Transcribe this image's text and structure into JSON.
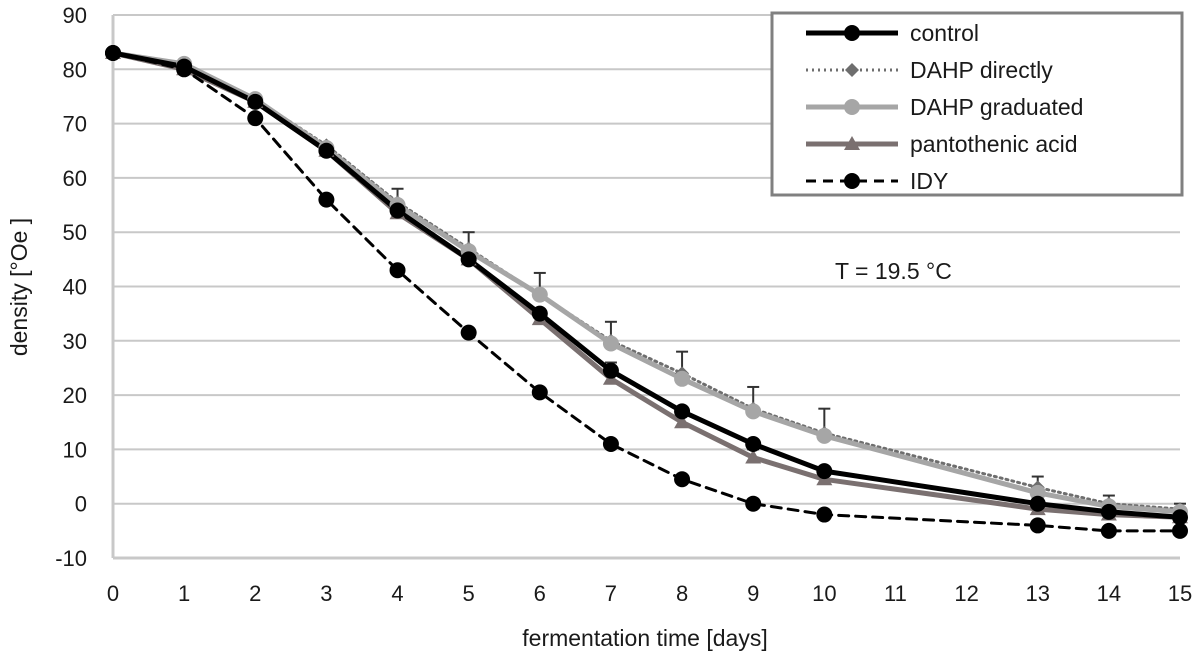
{
  "chart_data": {
    "type": "line",
    "xlabel": "fermentation time [days]",
    "ylabel": "density [°Oe ]",
    "annotation": "T = 19.5 °C",
    "ylim": [
      -10,
      90
    ],
    "yticks": [
      -10,
      0,
      10,
      20,
      30,
      40,
      50,
      60,
      70,
      80,
      90
    ],
    "categories": [
      "0",
      "1",
      "2",
      "3",
      "4",
      "5",
      "6",
      "7",
      "8",
      "9",
      "10",
      "11",
      "12",
      "13",
      "14",
      "15"
    ],
    "grid": "horizontal",
    "legend_position": "top-right",
    "series": [
      {
        "name": "control",
        "color": "#000000",
        "marker": "circle",
        "dash": "solid",
        "points": [
          [
            0,
            83
          ],
          [
            1,
            80.5
          ],
          [
            2,
            74
          ],
          [
            3,
            65
          ],
          [
            4,
            54
          ],
          [
            5,
            45
          ],
          [
            6,
            35
          ],
          [
            7,
            24.5
          ],
          [
            8,
            17
          ],
          [
            9,
            11
          ],
          [
            10,
            6
          ],
          [
            13,
            0
          ],
          [
            14,
            -1.5
          ],
          [
            15,
            -2.5
          ]
        ]
      },
      {
        "name": "DAHP directly",
        "color": "#6e6e6e",
        "marker": "diamond",
        "dash": "dotted",
        "points": [
          [
            0,
            83
          ],
          [
            1,
            81
          ],
          [
            2,
            74.5
          ],
          [
            3,
            66
          ],
          [
            4,
            55.5
          ],
          [
            5,
            47
          ],
          [
            6,
            38.5
          ],
          [
            7,
            30
          ],
          [
            8,
            24
          ],
          [
            9,
            17.5
          ],
          [
            10,
            13
          ],
          [
            13,
            3
          ],
          [
            14,
            0
          ],
          [
            15,
            -1
          ]
        ],
        "error": [
          0,
          0,
          0,
          0,
          2.5,
          3,
          4,
          3.5,
          4,
          4,
          4.5,
          2,
          1.5,
          1
        ]
      },
      {
        "name": "DAHP graduated",
        "color": "#a6a6a6",
        "marker": "circle",
        "dash": "solid",
        "points": [
          [
            0,
            83
          ],
          [
            1,
            81
          ],
          [
            2,
            74.5
          ],
          [
            3,
            65.5
          ],
          [
            4,
            55
          ],
          [
            5,
            46.5
          ],
          [
            6,
            38.5
          ],
          [
            7,
            29.5
          ],
          [
            8,
            23
          ],
          [
            9,
            17
          ],
          [
            10,
            12.5
          ],
          [
            13,
            2
          ],
          [
            14,
            -0.5
          ],
          [
            15,
            -1.5
          ]
        ]
      },
      {
        "name": "pantothenic acid",
        "color": "#7a7070",
        "marker": "triangle",
        "dash": "solid",
        "points": [
          [
            0,
            83
          ],
          [
            1,
            80
          ],
          [
            2,
            74
          ],
          [
            3,
            65
          ],
          [
            4,
            53.5
          ],
          [
            5,
            45
          ],
          [
            6,
            34
          ],
          [
            7,
            23
          ],
          [
            8,
            15
          ],
          [
            9,
            8.5
          ],
          [
            10,
            4.5
          ],
          [
            13,
            -1
          ],
          [
            14,
            -2
          ],
          [
            15,
            -2.5
          ]
        ],
        "error": [
          0,
          0,
          0,
          0,
          0,
          0,
          0,
          3,
          2.5,
          1.5,
          1,
          0,
          0,
          0
        ]
      },
      {
        "name": "IDY",
        "color": "#000000",
        "marker": "circle",
        "dash": "dashed",
        "points": [
          [
            0,
            83
          ],
          [
            1,
            80
          ],
          [
            2,
            71
          ],
          [
            3,
            56
          ],
          [
            4,
            43
          ],
          [
            5,
            31.5
          ],
          [
            6,
            20.5
          ],
          [
            7,
            11
          ],
          [
            8,
            4.5
          ],
          [
            9,
            0
          ],
          [
            10,
            -2
          ],
          [
            13,
            -4
          ],
          [
            14,
            -5
          ],
          [
            15,
            -5
          ]
        ]
      }
    ]
  }
}
